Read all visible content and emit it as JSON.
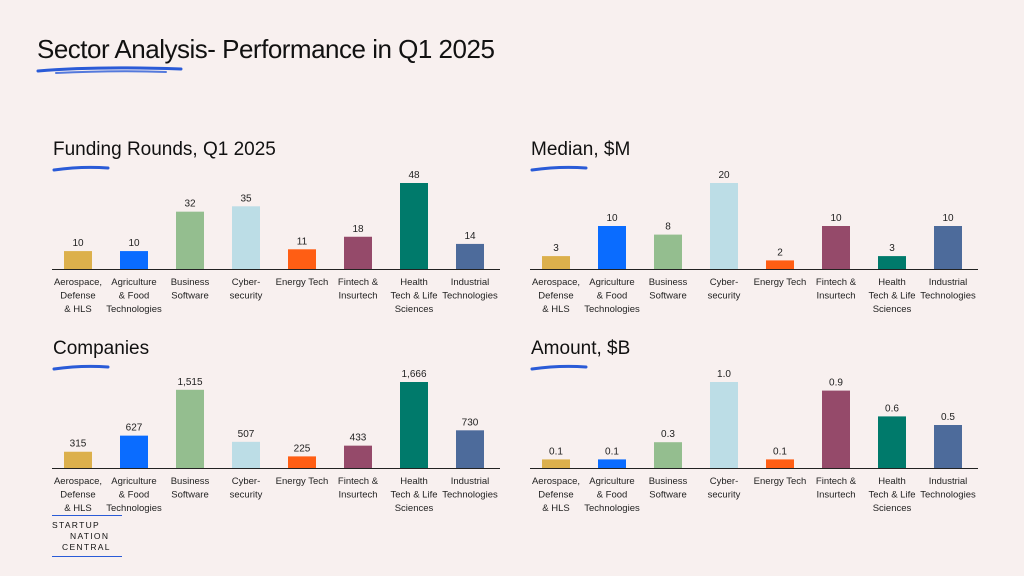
{
  "page": {
    "title": "Sector Analysis- Performance in Q1 2025",
    "accent_color": "#2a5bd7"
  },
  "logo": {
    "line1": "STARTUP",
    "line2": "NATION",
    "line3": "CENTRAL"
  },
  "chart_data": [
    {
      "id": "funding-rounds",
      "type": "bar",
      "title": "Funding Rounds, Q1 2025",
      "categories": [
        [
          "Aerospace,",
          "Defense",
          "& HLS"
        ],
        [
          "Agriculture",
          "& Food",
          "Technologies"
        ],
        [
          "Business",
          "Software"
        ],
        [
          "Cyber-",
          "security"
        ],
        [
          "Energy Tech"
        ],
        [
          "Fintech &",
          "Insurtech"
        ],
        [
          "Health",
          "Tech & Life",
          "Sciences"
        ],
        [
          "Industrial",
          "Technologies"
        ]
      ],
      "values": [
        10,
        10,
        32,
        35,
        11,
        18,
        48,
        14
      ],
      "labels": [
        "10",
        "10",
        "32",
        "35",
        "11",
        "18",
        "48",
        "14"
      ],
      "colors": [
        "#dcb04c",
        "#0a6cff",
        "#94be8f",
        "#bcdde6",
        "#ff5e14",
        "#954a6a",
        "#007a6b",
        "#4d6b9b"
      ],
      "ylim": [
        0,
        48
      ],
      "grid": false
    },
    {
      "id": "median",
      "type": "bar",
      "title": "Median, $M",
      "categories": [
        [
          "Aerospace,",
          "Defense",
          "& HLS"
        ],
        [
          "Agriculture",
          "& Food",
          "Technologies"
        ],
        [
          "Business",
          "Software"
        ],
        [
          "Cyber-",
          "security"
        ],
        [
          "Energy Tech"
        ],
        [
          "Fintech &",
          "Insurtech"
        ],
        [
          "Health",
          "Tech & Life",
          "Sciences"
        ],
        [
          "Industrial",
          "Technologies"
        ]
      ],
      "values": [
        3,
        10,
        8,
        20,
        2,
        10,
        3,
        10
      ],
      "labels": [
        "3",
        "10",
        "8",
        "20",
        "2",
        "10",
        "3",
        "10"
      ],
      "colors": [
        "#dcb04c",
        "#0a6cff",
        "#94be8f",
        "#bcdde6",
        "#ff5e14",
        "#954a6a",
        "#007a6b",
        "#4d6b9b"
      ],
      "ylim": [
        0,
        20
      ],
      "grid": false
    },
    {
      "id": "companies",
      "type": "bar",
      "title": "Companies",
      "categories": [
        [
          "Aerospace,",
          "Defense",
          "& HLS"
        ],
        [
          "Agriculture",
          "& Food",
          "Technologies"
        ],
        [
          "Business",
          "Software"
        ],
        [
          "Cyber-",
          "security"
        ],
        [
          "Energy Tech"
        ],
        [
          "Fintech &",
          "Insurtech"
        ],
        [
          "Health",
          "Tech & Life",
          "Sciences"
        ],
        [
          "Industrial",
          "Technologies"
        ]
      ],
      "values": [
        315,
        627,
        1515,
        507,
        225,
        433,
        1666,
        730
      ],
      "labels": [
        "315",
        "627",
        "1,515",
        "507",
        "225",
        "433",
        "1,666",
        "730"
      ],
      "colors": [
        "#dcb04c",
        "#0a6cff",
        "#94be8f",
        "#bcdde6",
        "#ff5e14",
        "#954a6a",
        "#007a6b",
        "#4d6b9b"
      ],
      "ylim": [
        0,
        1666
      ],
      "grid": false
    },
    {
      "id": "amount",
      "type": "bar",
      "title": "Amount, $B",
      "categories": [
        [
          "Aerospace,",
          "Defense",
          "& HLS"
        ],
        [
          "Agriculture",
          "& Food",
          "Technologies"
        ],
        [
          "Business",
          "Software"
        ],
        [
          "Cyber-",
          "security"
        ],
        [
          "Energy Tech"
        ],
        [
          "Fintech &",
          "Insurtech"
        ],
        [
          "Health",
          "Tech & Life",
          "Sciences"
        ],
        [
          "Industrial",
          "Technologies"
        ]
      ],
      "values": [
        0.1,
        0.1,
        0.3,
        1.0,
        0.1,
        0.9,
        0.6,
        0.5
      ],
      "labels": [
        "0.1",
        "0.1",
        "0.3",
        "1.0",
        "0.1",
        "0.9",
        "0.6",
        "0.5"
      ],
      "colors": [
        "#dcb04c",
        "#0a6cff",
        "#94be8f",
        "#bcdde6",
        "#ff5e14",
        "#954a6a",
        "#007a6b",
        "#4d6b9b"
      ],
      "ylim": [
        0,
        1.0
      ],
      "grid": false
    }
  ]
}
